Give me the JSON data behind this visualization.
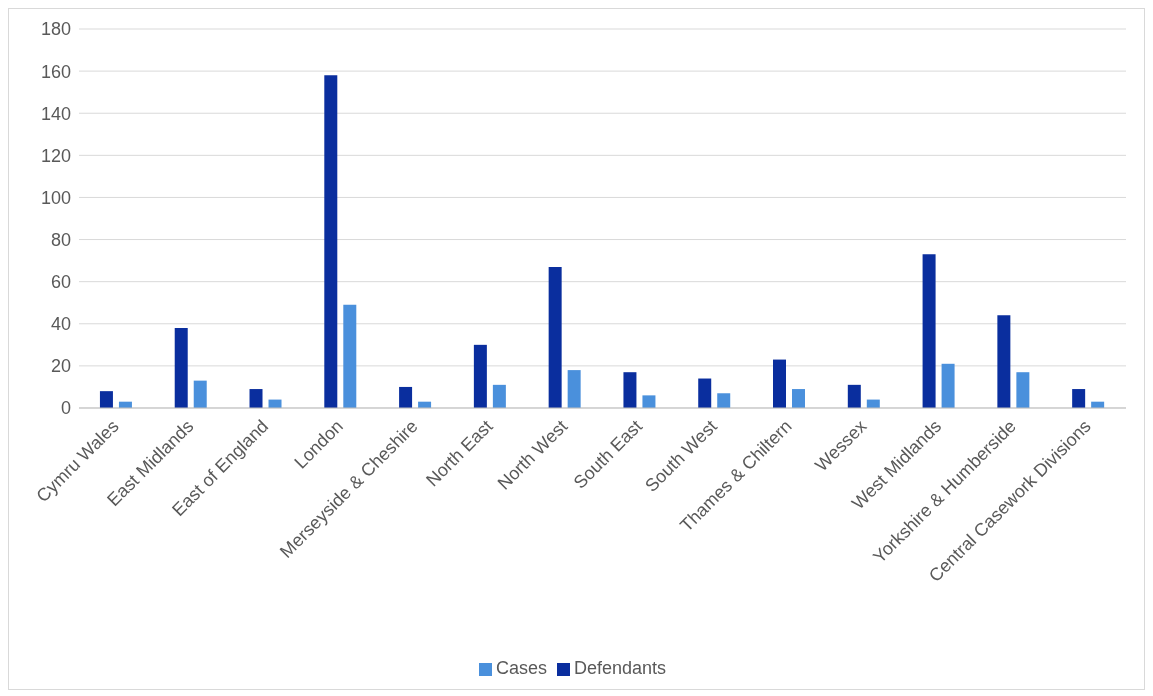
{
  "chart_data": {
    "type": "bar",
    "categories": [
      "Cymru Wales",
      "East Midlands",
      "East of England",
      "London",
      "Merseyside & Cheshire",
      "North East",
      "North West",
      "South East",
      "South West",
      "Thames & Chiltern",
      "Wessex",
      "West Midlands",
      "Yorkshire & Humberside",
      "Central Casework Divisions"
    ],
    "series": [
      {
        "name": "Defendants",
        "color": "#0a2e9e",
        "values": [
          8,
          38,
          9,
          158,
          10,
          30,
          67,
          17,
          14,
          23,
          11,
          73,
          44,
          9
        ]
      },
      {
        "name": "Cases",
        "color": "#4a90dc",
        "values": [
          3,
          13,
          4,
          49,
          3,
          11,
          18,
          6,
          7,
          9,
          4,
          21,
          17,
          3
        ]
      }
    ],
    "ylim": [
      0,
      180
    ],
    "yticks": [
      0,
      20,
      40,
      60,
      80,
      100,
      120,
      140,
      160,
      180
    ],
    "grid": "y",
    "legend": "bottom"
  }
}
